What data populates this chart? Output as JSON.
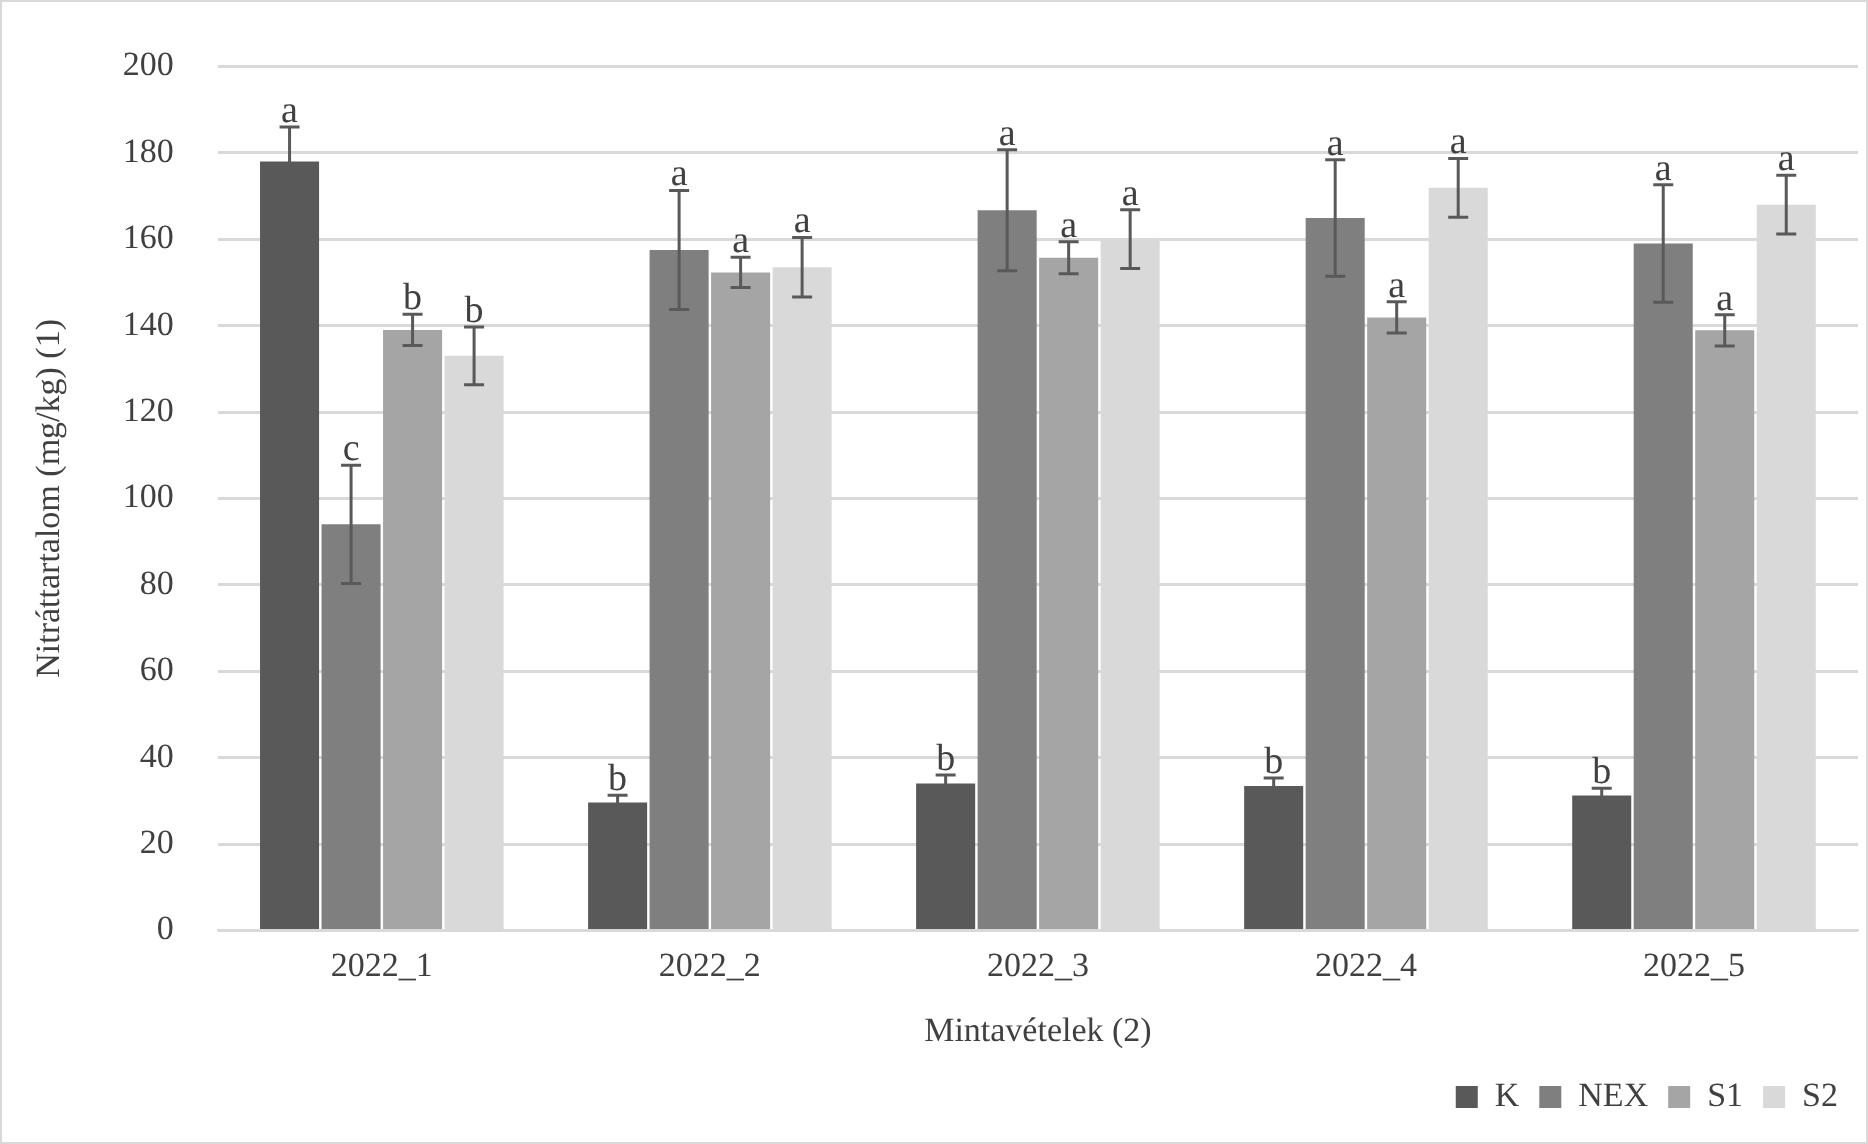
{
  "chart_data": {
    "type": "bar",
    "xlabel": "Mintavételek (2)",
    "ylabel": "Nitráttartalom (mg/kg) (1)",
    "categories": [
      "2022_1",
      "2022_2",
      "2022_3",
      "2022_4",
      "2022_5"
    ],
    "series": [
      {
        "name": "K",
        "color": "#595959",
        "values": [
          178,
          29.6,
          34,
          33.4,
          31.2
        ],
        "errors": [
          8,
          1.7,
          2,
          1.9,
          1.7
        ],
        "value_labels": [
          "a",
          "b",
          "b",
          "b",
          "b"
        ]
      },
      {
        "name": "NEX",
        "color": "#7f7f7f",
        "values": [
          94,
          157.5,
          166.7,
          164.9,
          159
        ],
        "errors": [
          13.7,
          13.8,
          14,
          13.5,
          13.6
        ],
        "value_labels": [
          "c",
          "a",
          "a",
          "a",
          "a"
        ]
      },
      {
        "name": "S1",
        "color": "#a5a5a5",
        "values": [
          139,
          152.3,
          155.7,
          141.9,
          138.9
        ],
        "errors": [
          3.6,
          3.5,
          3.7,
          3.6,
          3.6
        ],
        "value_labels": [
          "b",
          "a",
          "a",
          "a",
          "a"
        ]
      },
      {
        "name": "S2",
        "color": "#d9d9d9",
        "values": [
          133,
          153.5,
          160,
          171.9,
          168
        ],
        "errors": [
          6.7,
          6.9,
          6.8,
          6.8,
          6.8
        ],
        "value_labels": [
          "b",
          "a",
          "a",
          "a",
          "a"
        ]
      }
    ],
    "ylim": [
      0,
      200
    ],
    "yticks": [
      0,
      20,
      40,
      60,
      80,
      100,
      120,
      140,
      160,
      180,
      200
    ],
    "grid": "y",
    "legend": "bottom right"
  }
}
